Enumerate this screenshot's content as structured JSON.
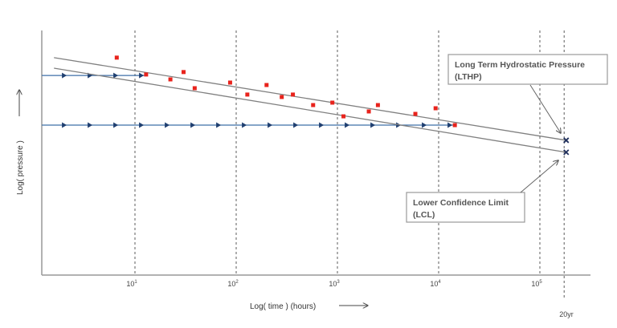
{
  "chart_data": {
    "type": "scatter",
    "xlabel": "Log( time ) (hours)",
    "ylabel": "Log( pressure )",
    "x_scale": "log10",
    "xlim": [
      0.08,
      5.5
    ],
    "ylim": [
      0,
      10
    ],
    "grid": "vertical dashed lines at decades",
    "x_ticks": [
      {
        "value": 1,
        "label": "10",
        "exp": "1"
      },
      {
        "value": 2,
        "label": "10",
        "exp": "2"
      },
      {
        "value": 3,
        "label": "10",
        "exp": "3"
      },
      {
        "value": 4,
        "label": "10",
        "exp": "4"
      },
      {
        "value": 5,
        "label": "10",
        "exp": "5"
      }
    ],
    "marker_20yr": {
      "value": 5.24,
      "label": "20yr"
    },
    "points": {
      "color": "#e8231c",
      "x": [
        0.82,
        1.11,
        1.35,
        1.48,
        1.59,
        1.94,
        2.11,
        2.3,
        2.45,
        2.56,
        2.76,
        2.95,
        3.06,
        3.31,
        3.4,
        3.77,
        3.97,
        4.16
      ],
      "y": [
        8.89,
        8.2,
        8.0,
        8.3,
        7.64,
        7.87,
        7.38,
        7.77,
        7.28,
        7.38,
        6.95,
        7.05,
        6.49,
        6.69,
        6.95,
        6.59,
        6.82,
        6.13
      ]
    },
    "regression_lines": [
      {
        "name": "LTHP",
        "x": [
          0.2,
          5.26
        ],
        "y": [
          8.89,
          5.51
        ],
        "color": "#808080"
      },
      {
        "name": "LCL",
        "x": [
          0.2,
          5.26
        ],
        "y": [
          8.46,
          5.02
        ],
        "color": "#808080"
      }
    ],
    "runout_lines": [
      {
        "x": [
          0.08,
          1.11
        ],
        "y": 8.16,
        "color": "#3d6fa8"
      },
      {
        "x": [
          0.08,
          4.16
        ],
        "y": 6.13,
        "color": "#3d6fa8"
      }
    ],
    "annotations": {
      "lthp": {
        "line1": "Long Term Hydrostatic Pressure",
        "line2": "(LTHP)"
      },
      "lcl": {
        "line1": "Lower Confidence Limit",
        "line2": "(LCL)"
      }
    },
    "extrapolated_marker_color": "#1f2f5c"
  }
}
